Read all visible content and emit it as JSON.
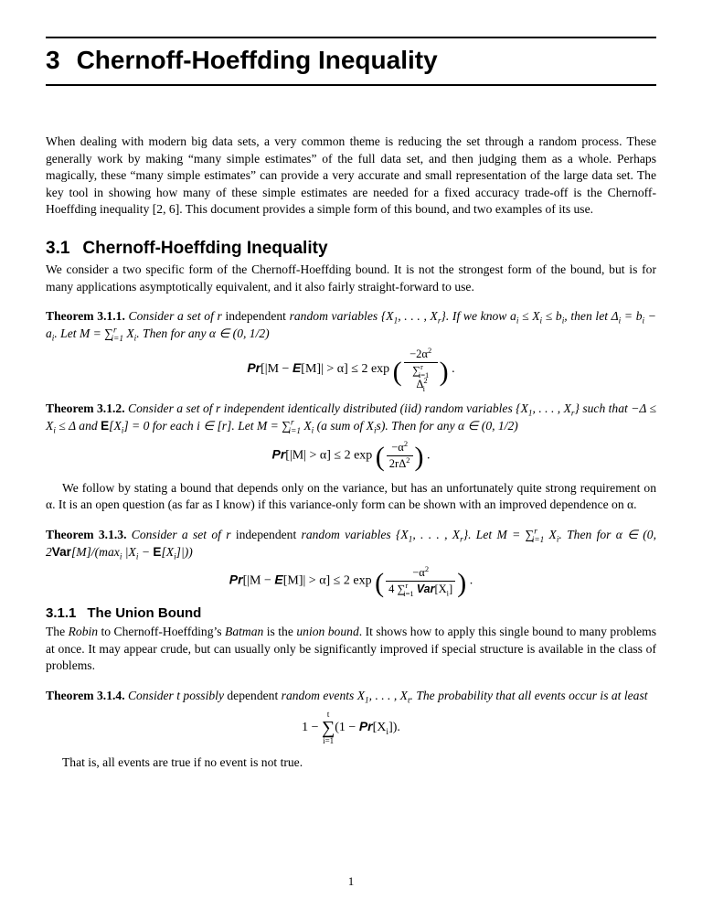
{
  "chapter": {
    "number": "3",
    "title": "Chernoff-Hoeffding Inequality"
  },
  "intro": "When dealing with modern big data sets, a very common theme is reducing the set through a random process. These generally work by making “many simple estimates” of the full data set, and then judging them as a whole. Perhaps magically, these “many simple estimates” can provide a very accurate and small representation of the large data set. The key tool in showing how many of these simple estimates are needed for a fixed accuracy trade-off is the Chernoff-Hoeffding inequality [2, 6]. This document provides a simple form of this bound, and two examples of its use.",
  "section31": {
    "num": "3.1",
    "title": "Chernoff-Hoeffding Inequality",
    "lead": "We consider a two specific form of the Chernoff-Hoeffding bound. It is not the strongest form of the bound, but is for many applications asymptotically equivalent, and it also fairly straight-forward to use."
  },
  "thm311": {
    "label": "Theorem 3.1.1.",
    "t1": " Consider a set of r ",
    "t2_up": "independent",
    "t3": " random variables {X",
    "t4": ", . . . , X",
    "t5": "}. If we know a",
    "t6": " ≤ X",
    "t7": " ≤ b",
    "t8": ", then let Δ",
    "t9": " = b",
    "t10": " − a",
    "t11": ". Let M = ∑",
    "t12": " X",
    "t13": ". Then for any α ∈ (0, 1/2)"
  },
  "f311": {
    "pr": "Pr",
    "lhs": "[|M − ",
    "E": "E",
    "mid": "[M]| > α] ≤ 2 exp",
    "num": "−2α",
    "den1": "∑",
    "den2": " Δ"
  },
  "thm312": {
    "label": "Theorem 3.1.2.",
    "t1": " Consider a set of r independent identically distributed (iid) random variables {X",
    "t2": ", . . . , X",
    "t3": "} such that −Δ ≤ X",
    "t4": " ≤ Δ and ",
    "E": "E",
    "t5": "[X",
    "t6": "] = 0 for each i ∈ [r]. Let M = ∑",
    "t7": " X",
    "t8": " (a sum of X",
    "t9": "s). Then for any α ∈ (0, 1/2)"
  },
  "f312": {
    "pr": "Pr",
    "lhs": "[|M| > α] ≤ 2 exp",
    "num": "−α",
    "den": "2rΔ"
  },
  "para_after312": "We follow by stating a bound that depends only on the variance, but has an unfortunately quite strong requirement on α. It is an open question (as far as I know) if this variance-only form can be shown with an improved dependence on α.",
  "thm313": {
    "label": "Theorem 3.1.3.",
    "t1": " Consider a set of r ",
    "t2_up": "independent",
    "t3": " random variables {X",
    "t4": ", . . . , X",
    "t5": "}.  Let M = ∑",
    "t6": " X",
    "t7": ". Then for α ∈ (0, 2",
    "Var": "Var",
    "t8": "[M]/(max",
    "t9": " |X",
    "t10": " − ",
    "E": "E",
    "t11": "[X",
    "t12": "]|))"
  },
  "f313": {
    "pr": "Pr",
    "lhs": "[|M − ",
    "E": "E",
    "mid": "[M]| > α] ≤ 2 exp",
    "num": "−α",
    "den1": "4 ∑",
    "Var": "Var",
    "den2": "[X",
    "den3": "]"
  },
  "sub311": {
    "num": "3.1.1",
    "title": "The Union Bound",
    "lead1": "The ",
    "robin": "Robin",
    "lead2": " to Chernoff-Hoeffding’s ",
    "batman": "Batman",
    "lead3": " is the ",
    "union": "union bound",
    "lead4": ". It shows how to apply this single bound to many problems at once. It may appear crude, but can usually only be significantly improved if special structure is available in the class of problems."
  },
  "thm314": {
    "label": "Theorem 3.1.4.",
    "t1": " Consider t possibly ",
    "t2_up": "dependent",
    "t3": " random events X",
    "t4": ", . . . , X",
    "t5": ". The probability that all events occur is at least"
  },
  "f314": {
    "lhs": "1 − ",
    "mid": "(1 − ",
    "pr": "Pr",
    "rhs": "[X",
    "end": "])."
  },
  "closing": "That is, all events are true if no event is not true.",
  "pagenum": "1"
}
